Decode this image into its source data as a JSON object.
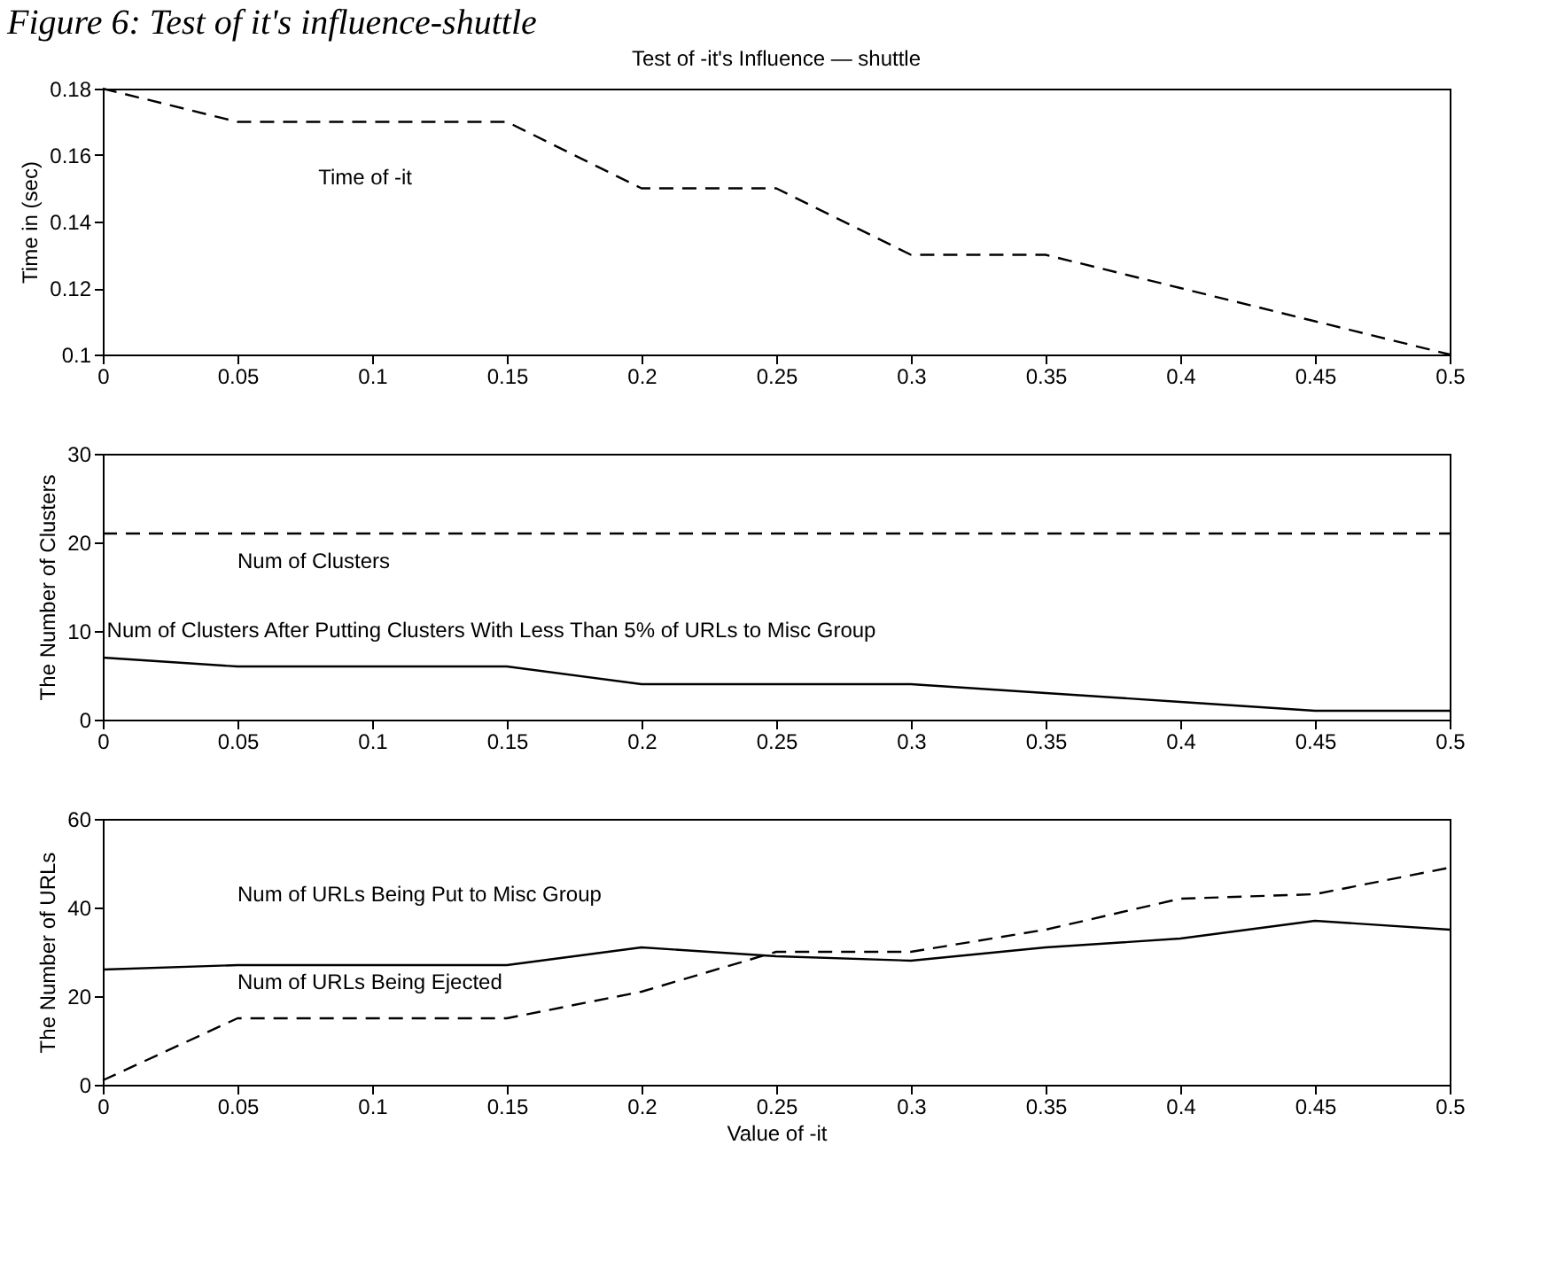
{
  "chart_data": [
    {
      "type": "line",
      "title": "Test of -it's Influence — shuttle",
      "ylabel": "Time in (sec)",
      "annotations": [
        "Figure 6: Test of it's influence-shuttle",
        "Time of -it"
      ],
      "x": [
        0,
        0.05,
        0.1,
        0.15,
        0.2,
        0.25,
        0.3,
        0.35,
        0.4,
        0.45,
        0.5
      ],
      "series": [
        {
          "color": "#000000",
          "line_style": "dashed",
          "values": [
            0.18,
            0.17,
            0.17,
            0.17,
            0.15,
            0.15,
            0.13,
            0.13,
            0.12,
            0.11,
            0.1
          ]
        }
      ],
      "xlim": [
        0,
        0.5
      ],
      "xticks": [
        0,
        0.05,
        0.1,
        0.15,
        0.2,
        0.25,
        0.3,
        0.35,
        0.4,
        0.45,
        0.5
      ],
      "ylim": [
        0.1,
        0.18
      ],
      "yticks": [
        0.1,
        0.12,
        0.14,
        0.16,
        0.18
      ],
      "grid": false,
      "marker": "none"
    },
    {
      "type": "line",
      "ylabel": "The Number of Clusters",
      "annotations": [
        "Num of Clusters",
        "Num of Clusters After Putting Clusters With Less Than 5% of URLs to Misc Group"
      ],
      "x": [
        0,
        0.05,
        0.1,
        0.15,
        0.2,
        0.25,
        0.3,
        0.35,
        0.4,
        0.45,
        0.5
      ],
      "series": [
        {
          "color": "#000000",
          "line_style": "dashed",
          "values": [
            21,
            21,
            21,
            21,
            21,
            21,
            21,
            21,
            21,
            21,
            21
          ]
        },
        {
          "color": "#000000",
          "line_style": "solid",
          "values": [
            7,
            6,
            6,
            6,
            4,
            4,
            4,
            3,
            2,
            1,
            1
          ]
        }
      ],
      "xlim": [
        0,
        0.5
      ],
      "xticks": [
        0,
        0.05,
        0.1,
        0.15,
        0.2,
        0.25,
        0.3,
        0.35,
        0.4,
        0.45,
        0.5
      ],
      "ylim": [
        0,
        30
      ],
      "yticks": [
        0,
        10,
        20,
        30
      ],
      "grid": false,
      "marker": "none"
    },
    {
      "type": "line",
      "xlabel": "Value of -it",
      "ylabel": "The Number of URLs",
      "annotations": [
        "Num of URLs Being Put to Misc Group",
        "Num of URLs Being Ejected"
      ],
      "x": [
        0,
        0.05,
        0.1,
        0.15,
        0.2,
        0.25,
        0.3,
        0.35,
        0.4,
        0.45,
        0.5
      ],
      "series": [
        {
          "color": "#000000",
          "line_style": "solid",
          "values": [
            26,
            27,
            27,
            27,
            31,
            29,
            28,
            31,
            33,
            37,
            35
          ]
        },
        {
          "color": "#000000",
          "line_style": "dashed",
          "values": [
            1,
            15,
            15,
            15,
            21,
            30,
            30,
            35,
            42,
            43,
            49
          ]
        }
      ],
      "xlim": [
        0,
        0.5
      ],
      "xticks": [
        0,
        0.05,
        0.1,
        0.15,
        0.2,
        0.25,
        0.3,
        0.35,
        0.4,
        0.45,
        0.5
      ],
      "ylim": [
        0,
        60
      ],
      "yticks": [
        0,
        20,
        40,
        60
      ],
      "grid": false,
      "marker": "none"
    }
  ]
}
